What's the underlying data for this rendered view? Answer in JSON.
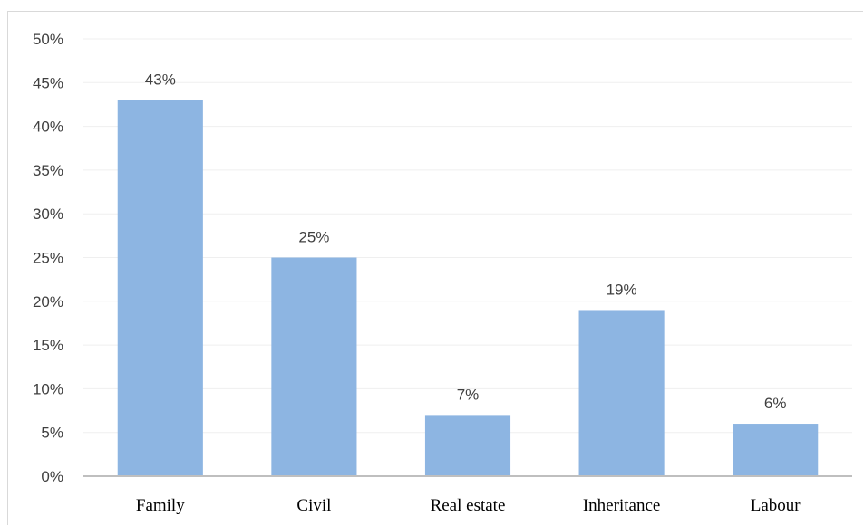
{
  "chart_data": {
    "type": "bar",
    "categories": [
      "Family",
      "Civil",
      "Real estate",
      "Inheritance",
      "Labour"
    ],
    "values": [
      43,
      25,
      7,
      19,
      6
    ],
    "data_labels": [
      "43%",
      "25%",
      "7%",
      "19%",
      "6%"
    ],
    "y_ticks": [
      "0%",
      "5%",
      "10%",
      "15%",
      "20%",
      "25%",
      "30%",
      "35%",
      "40%",
      "45%",
      "50%"
    ],
    "y_tick_values": [
      0,
      5,
      10,
      15,
      20,
      25,
      30,
      35,
      40,
      45,
      50
    ],
    "ylim": [
      0,
      50
    ],
    "grid": true,
    "legend": "none",
    "bar_color": "#8db5e2",
    "grid_color": "#efefef",
    "axis_color": "#bfbfbf"
  }
}
